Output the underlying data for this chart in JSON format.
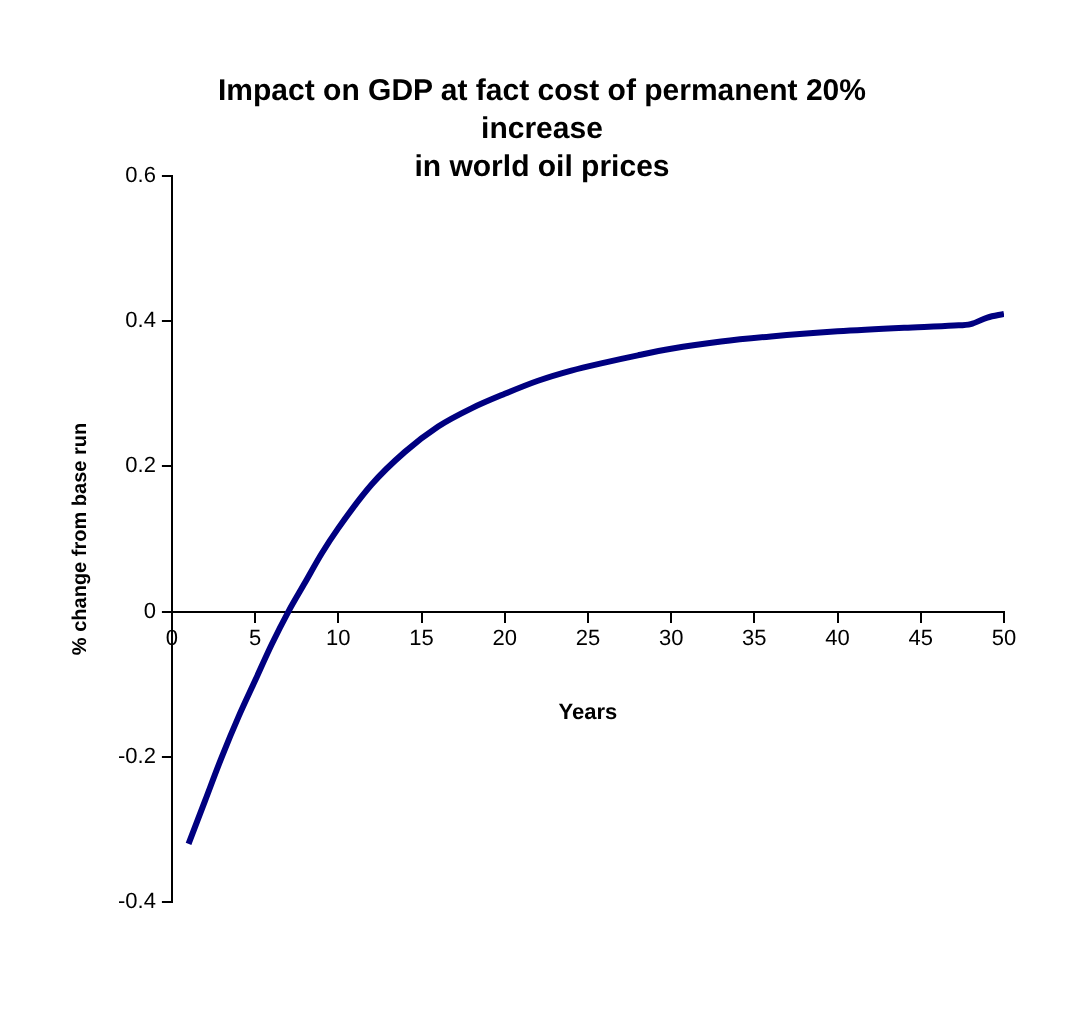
{
  "chart_data": {
    "type": "line",
    "title": "Impact on GDP at fact cost of permanent 20%\nincrease\nin world oil prices",
    "xlabel": "Years",
    "ylabel": "% change from base run",
    "x": [
      1,
      2,
      3,
      4,
      5,
      6,
      7,
      8,
      9,
      10,
      12,
      14,
      16,
      18,
      20,
      22,
      24,
      26,
      28,
      30,
      33,
      36,
      40,
      44,
      47,
      48,
      49,
      50
    ],
    "series": [
      {
        "color": "#000080",
        "values": [
          -0.32,
          -0.26,
          -0.2,
          -0.145,
          -0.095,
          -0.045,
          0.0,
          0.04,
          0.08,
          0.115,
          0.175,
          0.22,
          0.255,
          0.28,
          0.3,
          0.318,
          0.332,
          0.343,
          0.353,
          0.362,
          0.372,
          0.379,
          0.386,
          0.391,
          0.394,
          0.396,
          0.405,
          0.41
        ]
      }
    ],
    "xlim": [
      0,
      50
    ],
    "xticks": [
      0,
      5,
      10,
      15,
      20,
      25,
      30,
      35,
      40,
      45,
      50
    ],
    "ylim": [
      -0.4,
      0.6
    ],
    "yticks": [
      -0.4,
      -0.2,
      0,
      0.2,
      0.4,
      0.6
    ],
    "grid": false,
    "legend": false,
    "marker": "none",
    "line_style": "solid"
  }
}
